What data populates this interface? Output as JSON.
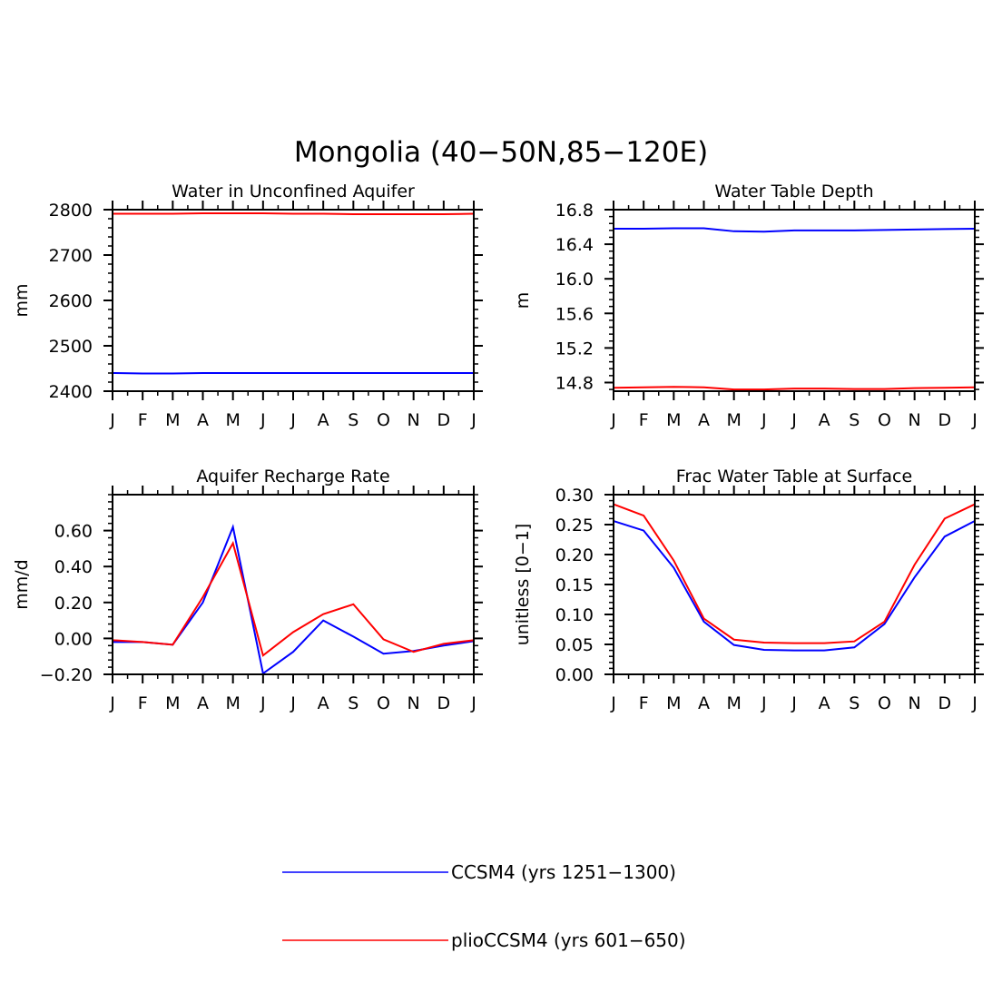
{
  "figure": {
    "title": "Mongolia (40−50N,85−120E)"
  },
  "legend": {
    "placement": "bottom-center",
    "entries": [
      {
        "label": "CCSM4 (yrs 1251−1300)",
        "color": "#0000ff"
      },
      {
        "label": "plioCCSM4 (yrs 601−650)",
        "color": "#ff0000"
      }
    ]
  },
  "chart_data": [
    {
      "type": "line",
      "title": "Water in Unconfined Aquifer",
      "xlabel": "",
      "ylabel": "mm",
      "categories": [
        "J",
        "F",
        "M",
        "A",
        "M",
        "J",
        "J",
        "A",
        "S",
        "O",
        "N",
        "D",
        "J"
      ],
      "ylim": [
        2400,
        2800
      ],
      "yticks": [
        2400,
        2500,
        2600,
        2700,
        2800
      ],
      "ytick_labels": [
        "2400",
        "2500",
        "2600",
        "2700",
        "2800"
      ],
      "grid": false,
      "series": [
        {
          "name": "CCSM4 (yrs 1251−1300)",
          "color": "#0000ff",
          "values": [
            2440,
            2439,
            2439,
            2440,
            2440,
            2440,
            2440,
            2440,
            2440,
            2440,
            2440,
            2440,
            2440
          ]
        },
        {
          "name": "plioCCSM4 (yrs 601−650)",
          "color": "#ff0000",
          "values": [
            2791,
            2791,
            2791,
            2792,
            2792,
            2792,
            2791,
            2791,
            2790,
            2790,
            2790,
            2790,
            2791
          ]
        }
      ]
    },
    {
      "type": "line",
      "title": "Water Table Depth",
      "xlabel": "",
      "ylabel": "m",
      "categories": [
        "J",
        "F",
        "M",
        "A",
        "M",
        "J",
        "J",
        "A",
        "S",
        "O",
        "N",
        "D",
        "J"
      ],
      "ylim": [
        14.7,
        16.8
      ],
      "yticks": [
        14.8,
        15.2,
        15.6,
        16.0,
        16.4,
        16.8
      ],
      "ytick_labels": [
        "14.8",
        "15.2",
        "15.6",
        "16.0",
        "16.4",
        "16.8"
      ],
      "grid": false,
      "series": [
        {
          "name": "CCSM4 (yrs 1251−1300)",
          "color": "#0000ff",
          "values": [
            16.58,
            16.58,
            16.585,
            16.585,
            16.55,
            16.545,
            16.56,
            16.56,
            16.56,
            16.565,
            16.57,
            16.575,
            16.58
          ]
        },
        {
          "name": "plioCCSM4 (yrs 601−650)",
          "color": "#ff0000",
          "values": [
            14.74,
            14.745,
            14.75,
            14.745,
            14.72,
            14.72,
            14.73,
            14.73,
            14.725,
            14.725,
            14.735,
            14.74,
            14.745
          ]
        }
      ]
    },
    {
      "type": "line",
      "title": "Aquifer Recharge Rate",
      "xlabel": "",
      "ylabel": "mm/d",
      "categories": [
        "J",
        "F",
        "M",
        "A",
        "M",
        "J",
        "J",
        "A",
        "S",
        "O",
        "N",
        "D",
        "J"
      ],
      "ylim": [
        -0.2,
        0.8
      ],
      "yticks": [
        -0.2,
        0.0,
        0.2,
        0.4,
        0.6
      ],
      "ytick_labels": [
        "−0.20",
        "0.00",
        "0.20",
        "0.40",
        "0.60"
      ],
      "grid": false,
      "series": [
        {
          "name": "CCSM4 (yrs 1251−1300)",
          "color": "#0000ff",
          "values": [
            -0.02,
            -0.02,
            -0.035,
            0.2,
            0.62,
            -0.195,
            -0.075,
            0.1,
            0.01,
            -0.085,
            -0.07,
            -0.04,
            -0.015
          ]
        },
        {
          "name": "plioCCSM4 (yrs 601−650)",
          "color": "#ff0000",
          "values": [
            -0.01,
            -0.02,
            -0.035,
            0.23,
            0.53,
            -0.095,
            0.035,
            0.135,
            0.19,
            -0.005,
            -0.075,
            -0.03,
            -0.01
          ]
        }
      ]
    },
    {
      "type": "line",
      "title": "Frac Water Table at Surface",
      "xlabel": "",
      "ylabel": "unitless [0−1]",
      "categories": [
        "J",
        "F",
        "M",
        "A",
        "M",
        "J",
        "J",
        "A",
        "S",
        "O",
        "N",
        "D",
        "J"
      ],
      "ylim": [
        0,
        0.3
      ],
      "yticks": [
        0,
        0.05,
        0.1,
        0.15,
        0.2,
        0.25,
        0.3
      ],
      "ytick_labels": [
        "0.00",
        "0.05",
        "0.10",
        "0.15",
        "0.20",
        "0.25",
        "0.30"
      ],
      "grid": false,
      "series": [
        {
          "name": "CCSM4 (yrs 1251−1300)",
          "color": "#0000ff",
          "values": [
            0.256,
            0.24,
            0.178,
            0.088,
            0.049,
            0.041,
            0.04,
            0.04,
            0.045,
            0.084,
            0.162,
            0.23,
            0.256
          ]
        },
        {
          "name": "plioCCSM4 (yrs 601−650)",
          "color": "#ff0000",
          "values": [
            0.284,
            0.265,
            0.19,
            0.093,
            0.058,
            0.053,
            0.052,
            0.052,
            0.055,
            0.088,
            0.183,
            0.26,
            0.284
          ]
        }
      ]
    }
  ]
}
